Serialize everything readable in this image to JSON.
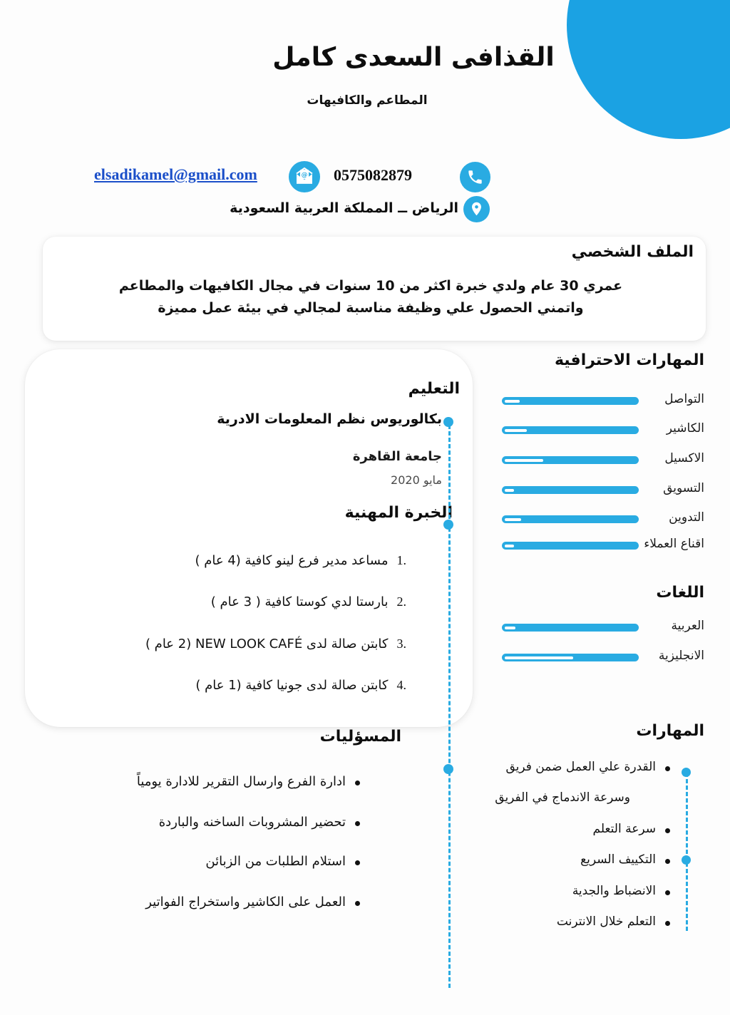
{
  "colors": {
    "accent": "#29abe2",
    "circle": "#1ba2e3",
    "link": "#1b4fc9"
  },
  "header": {
    "name": "القذافى السعدى كامل",
    "subtitle": "المطاعم والكافيهات"
  },
  "contact": {
    "email": "elsadikamel@gmail.com",
    "phone": "0575082879",
    "location": "الرياض ــ المملكة العربية السعودية"
  },
  "profile": {
    "title": "الملف الشخصي",
    "line1": "عمري 30 عام ولدي خبرة اكثر من 10 سنوات في مجال الكافيهات والمطاعم",
    "line2": "واتمني الحصول علي وظيفة مناسبة لمجالي في بيئة عمل مميزة"
  },
  "education": {
    "title": "التعليم",
    "degree": "بكالوريوس نظم المعلومات الادرية",
    "university": "جامعة القاهرة",
    "date": "مايو 2020"
  },
  "experience": {
    "title": "الخبرة المهنية",
    "items": [
      {
        "num": "1.",
        "text": "مساعد مدير فرع لينو كافية (4 عام )"
      },
      {
        "num": "2.",
        "text": "بارستا لدي كوستا كافية ( 3 عام )"
      },
      {
        "num": "3.",
        "text": "كابتن صالة لدى NEW LOOK CAFÉ (2 عام )"
      },
      {
        "num": "4.",
        "text": "كابتن صالة لدى جونيا كافية (1 عام )"
      }
    ]
  },
  "responsibilities": {
    "title": "المسؤليات",
    "items": [
      "ادارة الفرع وارسال التقرير للادارة يومياً",
      "تحضير المشروبات الساخنه والباردة",
      "استلام الطلبات من الزبائن",
      "العمل على الكاشير واستخراج الفواتير"
    ]
  },
  "professional_skills": {
    "title": "المهارات الاحترافية",
    "items": [
      {
        "label": "التواصل",
        "level": 89
      },
      {
        "label": "الكاشير",
        "level": 84
      },
      {
        "label": "الاكسيل",
        "level": 72
      },
      {
        "label": "التسويق",
        "level": 93
      },
      {
        "label": "التدوين",
        "level": 88
      },
      {
        "label": "اقناع العملاء",
        "level": 93
      }
    ]
  },
  "languages": {
    "title": "اللغات",
    "items": [
      {
        "label": "العربية",
        "level": 92
      },
      {
        "label": "الانجليزية",
        "level": 50
      }
    ]
  },
  "skills": {
    "title": "المهارات",
    "items": [
      "القدرة علي العمل ضمن فريق",
      "وسرعة الاندماج في الفريق",
      "سرعة التعلم",
      "التكييف السريع",
      "الانضباط والجدية",
      "التعلم خلال الانترنت"
    ]
  }
}
